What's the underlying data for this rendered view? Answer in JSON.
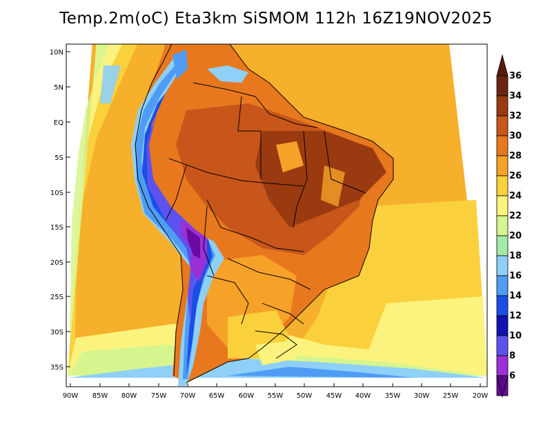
{
  "title": "Temp.2m(oC) Eta3km SiSMOM 112h 16Z19NOV2025",
  "y_axis_labels": [
    "10N",
    "5N",
    "EQ",
    "5S",
    "10S",
    "15S",
    "20S",
    "25S",
    "30S",
    "35S"
  ],
  "x_axis_labels": [
    "90W",
    "85W",
    "80W",
    "75W",
    "70W",
    "65W",
    "60W",
    "55W",
    "50W",
    "45W",
    "40W",
    "35W",
    "30W",
    "25W",
    "20W"
  ],
  "colorbar": {
    "labels": [
      "36",
      "34",
      "32",
      "30",
      "28",
      "26",
      "24",
      "22",
      "20",
      "18",
      "16",
      "14",
      "12",
      "10",
      "8",
      "6"
    ],
    "colors": [
      "#6b2410",
      "#9a3a10",
      "#c8561a",
      "#e8781e",
      "#f6a228",
      "#fad13c",
      "#fcf37e",
      "#d6f58e",
      "#a4eaa8",
      "#8ed0f8",
      "#4e9cf4",
      "#1a4fe6",
      "#1212b2",
      "#5e52ee",
      "#9a30d6",
      "#6a0aa0"
    ],
    "top_color": "#5a1a0a",
    "bottom_color": "#5a0a8a"
  }
}
